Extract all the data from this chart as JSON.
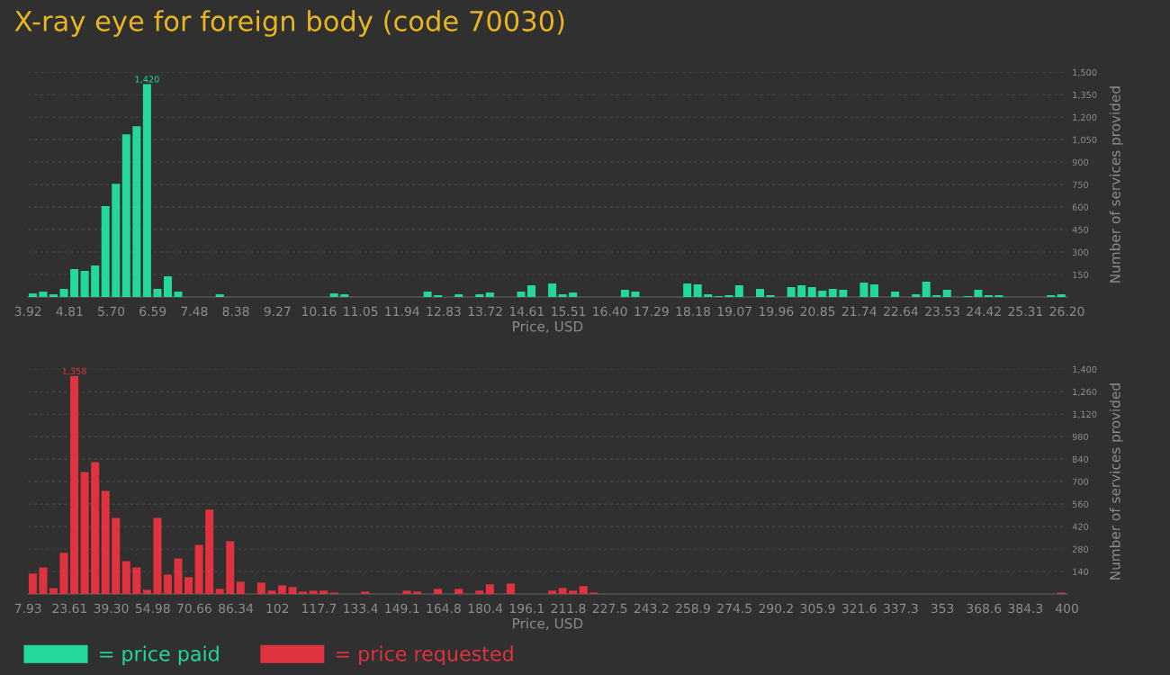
{
  "chart_data": [
    {
      "type": "histogram",
      "title": "X-ray eye for foreign body (code 70030)",
      "xlabel": "Price, USD",
      "ylabel": "Number of services provided",
      "bins": [
        3.92,
        4.1428,
        4.3656,
        4.5884,
        4.8112,
        5.034,
        5.2568,
        5.4796,
        5.7024,
        5.9252,
        6.148,
        6.3708,
        6.5936,
        6.8164,
        7.0392,
        7.262,
        7.4848,
        7.7076,
        7.9304,
        8.1532,
        8.376,
        8.5988,
        8.8216,
        9.0444,
        9.2672,
        9.49,
        9.7128,
        9.9356,
        10.1584,
        10.3812,
        10.604,
        10.8268,
        11.0496,
        11.2724,
        11.4952,
        11.718,
        11.9408,
        12.1636,
        12.3864,
        12.6092,
        12.832,
        13.0548,
        13.2776,
        13.5004,
        13.7232,
        13.946,
        14.1688,
        14.3916,
        14.6144,
        14.8372,
        15.06,
        15.2828,
        15.5056,
        15.7284,
        15.9512,
        16.174,
        16.3968,
        16.6196,
        16.8424,
        17.0652,
        17.288,
        17.5108,
        17.7336,
        17.9564,
        18.1792,
        18.402,
        18.6248,
        18.8476,
        19.0704,
        19.2932,
        19.516,
        19.7388,
        19.9616,
        20.1844,
        20.4072,
        20.63,
        20.8528,
        21.0756,
        21.2984,
        21.5212,
        21.744,
        21.9668,
        22.1896,
        22.4124,
        22.6352,
        22.858,
        23.0808,
        23.3036,
        23.5264,
        23.7492,
        23.972,
        24.1948,
        24.4176,
        24.6404,
        24.8632,
        25.086,
        25.3088,
        25.5316,
        25.7544,
        25.9772,
        26.2
      ],
      "series": [
        {
          "name": "= price paid",
          "color": "#22d99b",
          "values": [
            24,
            36,
            18,
            54,
            186,
            174,
            210,
            606,
            756,
            1086,
            1140,
            1420,
            54,
            138,
            36,
            0,
            0,
            0,
            18,
            0,
            0,
            0,
            0,
            0,
            0,
            0,
            0,
            0,
            0,
            24,
            18,
            0,
            0,
            0,
            0,
            0,
            0,
            0,
            36,
            12,
            0,
            18,
            0,
            18,
            30,
            0,
            0,
            36,
            78,
            0,
            90,
            18,
            30,
            0,
            0,
            0,
            0,
            48,
            36,
            0,
            0,
            0,
            0,
            90,
            84,
            18,
            6,
            12,
            78,
            0,
            54,
            12,
            0,
            66,
            78,
            66,
            42,
            54,
            48,
            0,
            96,
            84,
            0,
            36,
            0,
            18,
            102,
            12,
            48,
            0,
            6,
            48,
            12,
            12,
            0,
            0,
            0,
            0,
            12,
            18
          ],
          "value_labels": [
            null,
            null,
            null,
            null,
            null,
            null,
            null,
            null,
            null,
            null,
            null,
            "1,420",
            null,
            null,
            null,
            null,
            null,
            null,
            null,
            null,
            null,
            null,
            null,
            null,
            null,
            null,
            null,
            null,
            null,
            null,
            null,
            null,
            null,
            null,
            null,
            null,
            null,
            null,
            null,
            null,
            null,
            null,
            null,
            null,
            null,
            null,
            null,
            null,
            null,
            null,
            null,
            null,
            null,
            null,
            null,
            null,
            null,
            null,
            null,
            null,
            null,
            null,
            null,
            null,
            null,
            null,
            null,
            null,
            null,
            null,
            null,
            null,
            null,
            null,
            null,
            null,
            null,
            null,
            null,
            null,
            null,
            null,
            null,
            null,
            null,
            null,
            null,
            null,
            null,
            null,
            null,
            null,
            null,
            null,
            null,
            null,
            null,
            null,
            null,
            null
          ]
        }
      ],
      "xlim": [
        3.92,
        26.2
      ],
      "xticks": [
        {
          "value": 3.92,
          "label": "3.92"
        },
        {
          "value": 4.8112,
          "label": "4.81"
        },
        {
          "value": 5.7024,
          "label": "5.70"
        },
        {
          "value": 6.5936,
          "label": "6.59"
        },
        {
          "value": 7.4848,
          "label": "7.48"
        },
        {
          "value": 8.376,
          "label": "8.38"
        },
        {
          "value": 9.2672,
          "label": "9.27"
        },
        {
          "value": 10.1584,
          "label": "10.16"
        },
        {
          "value": 11.0496,
          "label": "11.05"
        },
        {
          "value": 11.9408,
          "label": "11.94"
        },
        {
          "value": 12.832,
          "label": "12.83"
        },
        {
          "value": 13.7232,
          "label": "13.72"
        },
        {
          "value": 14.6144,
          "label": "14.61"
        },
        {
          "value": 15.5056,
          "label": "15.51"
        },
        {
          "value": 16.3968,
          "label": "16.40"
        },
        {
          "value": 17.288,
          "label": "17.29"
        },
        {
          "value": 18.1792,
          "label": "18.18"
        },
        {
          "value": 19.0704,
          "label": "19.07"
        },
        {
          "value": 19.9616,
          "label": "19.96"
        },
        {
          "value": 20.8528,
          "label": "20.85"
        },
        {
          "value": 21.744,
          "label": "21.74"
        },
        {
          "value": 22.6352,
          "label": "22.64"
        },
        {
          "value": 23.5264,
          "label": "23.53"
        },
        {
          "value": 24.4176,
          "label": "24.42"
        },
        {
          "value": 25.3088,
          "label": "25.31"
        },
        {
          "value": 26.2,
          "label": "26.20"
        }
      ],
      "ylim": [
        0,
        1500
      ],
      "yticks": [
        150,
        300,
        450,
        600,
        750,
        900,
        {
          "value": 1050,
          "label": "1,050"
        },
        {
          "value": 1200,
          "label": "1,200"
        },
        {
          "value": 1350,
          "label": "1,350"
        },
        {
          "value": 1500,
          "label": "1,500"
        }
      ],
      "grid": "y",
      "legend": "bottom left"
    },
    {
      "type": "histogram",
      "xlabel": "Price, USD",
      "ylabel": "Number of services provided",
      "bins": [
        7.93,
        11.8507,
        15.7714,
        19.6921,
        23.6128,
        27.5335,
        31.4542,
        35.3749,
        39.2956,
        43.2163,
        47.137,
        51.0577,
        54.9784,
        58.8991,
        62.8198,
        66.7405,
        70.6612,
        74.5819,
        78.5026,
        82.4233,
        86.344,
        90.2647,
        94.1854,
        98.1061,
        102.0268,
        105.9475,
        109.8682,
        113.7889,
        117.7096,
        121.6303,
        125.551,
        129.4717,
        133.3924,
        137.3131,
        141.2338,
        145.1545,
        149.0752,
        152.9959,
        156.9166,
        160.8373,
        164.758,
        168.6787,
        172.5994,
        176.5201,
        180.4408,
        184.3615,
        188.2822,
        192.2029,
        196.1236,
        200.0443,
        203.965,
        207.8857,
        211.8064,
        215.7271,
        219.6478,
        223.5685,
        227.4892,
        231.4099,
        235.3306,
        239.2513,
        243.172,
        247.0927,
        251.0134,
        254.9341,
        258.8548,
        262.7755,
        266.6962,
        270.6169,
        274.5376,
        278.4583,
        282.379,
        286.2997,
        290.2204,
        294.1411,
        298.0618,
        301.9825,
        305.9032,
        309.8239,
        313.7446,
        317.6653,
        321.586,
        325.5067,
        329.4274,
        333.3481,
        337.2688,
        341.1895,
        345.1102,
        349.0309,
        352.9516,
        356.8723,
        360.793,
        364.7137,
        368.6344,
        372.5551,
        376.4758,
        380.3965,
        384.3172,
        388.2379,
        392.1586,
        396.0793,
        400
      ],
      "series": [
        {
          "name": "= price requested",
          "color": "#e0323f",
          "values": [
            127,
            166,
            37,
            256,
            1358,
            760,
            821,
            642,
            474,
            205,
            166,
            26,
            474,
            121,
            222,
            105,
            306,
            525,
            32,
            329,
            77,
            0,
            71,
            21,
            54,
            43,
            15,
            21,
            21,
            9,
            0,
            0,
            15,
            0,
            0,
            0,
            21,
            15,
            0,
            32,
            0,
            32,
            0,
            21,
            60,
            0,
            65,
            0,
            0,
            0,
            21,
            37,
            21,
            49,
            9,
            0,
            0,
            0,
            0,
            0,
            0,
            0,
            0,
            0,
            0,
            0,
            0,
            0,
            0,
            0,
            0,
            0,
            0,
            0,
            0,
            0,
            0,
            0,
            0,
            0,
            0,
            0,
            0,
            0,
            0,
            0,
            0,
            0,
            0,
            0,
            0,
            0,
            0,
            0,
            0,
            0,
            0,
            0,
            0,
            9
          ],
          "value_labels": [
            null,
            null,
            null,
            null,
            "1,358",
            null,
            null,
            null,
            null,
            null,
            null,
            null,
            null,
            null,
            null,
            null,
            null,
            null,
            null,
            null,
            null,
            null,
            null,
            null,
            null,
            null,
            null,
            null,
            null,
            null,
            null,
            null,
            null,
            null,
            null,
            null,
            null,
            null,
            null,
            null,
            null,
            null,
            null,
            null,
            null,
            null,
            null,
            null,
            null,
            null,
            null,
            null,
            null,
            null,
            null,
            null,
            null,
            null,
            null,
            null,
            null,
            null,
            null,
            null,
            null,
            null,
            null,
            null,
            null,
            null,
            null,
            null,
            null,
            null,
            null,
            null,
            null,
            null,
            null,
            null,
            null,
            null,
            null,
            null,
            null,
            null,
            null,
            null,
            null,
            null,
            null,
            null,
            null,
            null,
            null,
            null,
            null,
            null,
            null,
            null
          ]
        }
      ],
      "xlim": [
        7.93,
        400
      ],
      "xticks": [
        {
          "value": 7.93,
          "label": "7.93"
        },
        {
          "value": 23.6128,
          "label": "23.61"
        },
        {
          "value": 39.2956,
          "label": "39.30"
        },
        {
          "value": 54.9784,
          "label": "54.98"
        },
        {
          "value": 70.6612,
          "label": "70.66"
        },
        {
          "value": 86.344,
          "label": "86.34"
        },
        {
          "value": 102.0268,
          "label": "102"
        },
        {
          "value": 117.7096,
          "label": "117.7"
        },
        {
          "value": 133.3924,
          "label": "133.4"
        },
        {
          "value": 149.0752,
          "label": "149.1"
        },
        {
          "value": 164.758,
          "label": "164.8"
        },
        {
          "value": 180.4408,
          "label": "180.4"
        },
        {
          "value": 196.1236,
          "label": "196.1"
        },
        {
          "value": 211.8064,
          "label": "211.8"
        },
        {
          "value": 227.4892,
          "label": "227.5"
        },
        {
          "value": 243.172,
          "label": "243.2"
        },
        {
          "value": 258.8548,
          "label": "258.9"
        },
        {
          "value": 274.5376,
          "label": "274.5"
        },
        {
          "value": 290.2204,
          "label": "290.2"
        },
        {
          "value": 305.9032,
          "label": "305.9"
        },
        {
          "value": 321.586,
          "label": "321.6"
        },
        {
          "value": 337.2688,
          "label": "337.3"
        },
        {
          "value": 352.9516,
          "label": "353"
        },
        {
          "value": 368.6344,
          "label": "368.6"
        },
        {
          "value": 384.3172,
          "label": "384.3"
        },
        {
          "value": 400,
          "label": "400"
        }
      ],
      "ylim": [
        0,
        1400
      ],
      "yticks": [
        140,
        280,
        420,
        560,
        700,
        840,
        980,
        {
          "value": 1120,
          "label": "1,120"
        },
        {
          "value": 1260,
          "label": "1,260"
        },
        {
          "value": 1400,
          "label": "1,400"
        }
      ],
      "grid": "y",
      "legend": "bottom left"
    }
  ]
}
